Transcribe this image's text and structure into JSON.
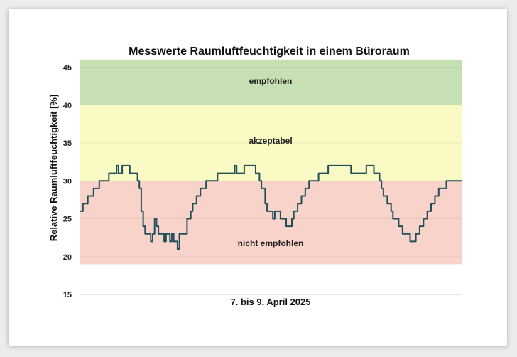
{
  "chart_data": {
    "type": "line",
    "title": "Messwerte Raumluftfeuchtigkeit in einem Büroraum",
    "xlabel": "7. bis 9. April 2025",
    "ylabel": "Relative Raumluftfeuchtigkeit [%]",
    "ylim": [
      15,
      46
    ],
    "yticks": [
      "15",
      "20",
      "25",
      "30",
      "35",
      "40",
      "45"
    ],
    "grid": false,
    "legend": "none",
    "zones": [
      {
        "label": "empfohlen",
        "from": 40,
        "to": 46,
        "color": "#c6e0b4"
      },
      {
        "label": "akzeptabel",
        "from": 30,
        "to": 40,
        "color": "#fafac4"
      },
      {
        "label": "nicht empfohlen",
        "from": 19,
        "to": 30,
        "color": "#f8d3c9"
      }
    ],
    "line_color": "#1f4e5a",
    "x_index_range": [
      0,
      100
    ],
    "series": [
      {
        "points": [
          [
            0,
            26
          ],
          [
            0.7,
            27
          ],
          [
            2,
            28
          ],
          [
            3.5,
            29
          ],
          [
            4.5,
            29
          ],
          [
            5,
            30
          ],
          [
            7,
            30
          ],
          [
            7.5,
            31
          ],
          [
            9,
            31
          ],
          [
            9.5,
            32
          ],
          [
            10,
            31
          ],
          [
            10.5,
            31
          ],
          [
            11,
            32
          ],
          [
            12.5,
            32
          ],
          [
            13,
            31
          ],
          [
            14.5,
            31
          ],
          [
            15,
            30
          ],
          [
            15.5,
            29
          ],
          [
            16,
            26
          ],
          [
            16.5,
            24
          ],
          [
            17,
            23
          ],
          [
            18,
            23
          ],
          [
            18.5,
            22
          ],
          [
            19,
            23
          ],
          [
            19.5,
            25
          ],
          [
            20,
            24
          ],
          [
            20.5,
            23
          ],
          [
            21,
            23
          ],
          [
            22,
            22
          ],
          [
            22.5,
            23
          ],
          [
            23,
            23
          ],
          [
            23.5,
            22
          ],
          [
            24,
            23
          ],
          [
            24.5,
            22
          ],
          [
            25,
            22
          ],
          [
            25.5,
            21
          ],
          [
            26,
            23
          ],
          [
            27.5,
            23
          ],
          [
            28,
            25
          ],
          [
            29,
            26
          ],
          [
            29.5,
            27
          ],
          [
            30.5,
            28
          ],
          [
            31.5,
            29
          ],
          [
            32.5,
            29
          ],
          [
            33,
            30
          ],
          [
            35,
            30
          ],
          [
            36,
            31
          ],
          [
            40,
            31
          ],
          [
            40.5,
            32
          ],
          [
            41,
            31
          ],
          [
            42.5,
            31
          ],
          [
            43,
            32
          ],
          [
            45.5,
            32
          ],
          [
            46,
            31
          ],
          [
            46.5,
            31
          ],
          [
            47,
            30
          ],
          [
            47.5,
            29
          ],
          [
            48,
            29
          ],
          [
            48.5,
            27
          ],
          [
            49,
            26
          ],
          [
            50,
            26
          ],
          [
            50.5,
            25
          ],
          [
            51,
            26
          ],
          [
            52,
            26
          ],
          [
            52.5,
            25
          ],
          [
            53.5,
            25
          ],
          [
            54,
            24
          ],
          [
            55,
            24
          ],
          [
            55.5,
            25
          ],
          [
            56,
            26
          ],
          [
            57,
            27
          ],
          [
            58,
            28
          ],
          [
            59,
            29
          ],
          [
            60,
            30
          ],
          [
            61.5,
            30
          ],
          [
            62.5,
            31
          ],
          [
            65,
            32
          ],
          [
            70,
            32
          ],
          [
            71,
            31
          ],
          [
            74,
            31
          ],
          [
            75,
            32
          ],
          [
            76.5,
            32
          ],
          [
            77,
            31
          ],
          [
            78.5,
            30
          ],
          [
            79,
            29
          ],
          [
            79.5,
            28
          ],
          [
            80.5,
            27
          ],
          [
            81.5,
            26
          ],
          [
            82,
            25
          ],
          [
            83,
            25
          ],
          [
            83.5,
            24
          ],
          [
            84.5,
            23
          ],
          [
            85,
            23
          ],
          [
            86.5,
            22
          ],
          [
            87.5,
            22
          ],
          [
            88,
            23
          ],
          [
            89,
            24
          ],
          [
            90,
            25
          ],
          [
            91,
            26
          ],
          [
            92,
            27
          ],
          [
            93,
            28
          ],
          [
            94,
            29
          ],
          [
            95,
            29
          ],
          [
            96,
            30
          ],
          [
            100,
            30
          ]
        ]
      }
    ]
  }
}
